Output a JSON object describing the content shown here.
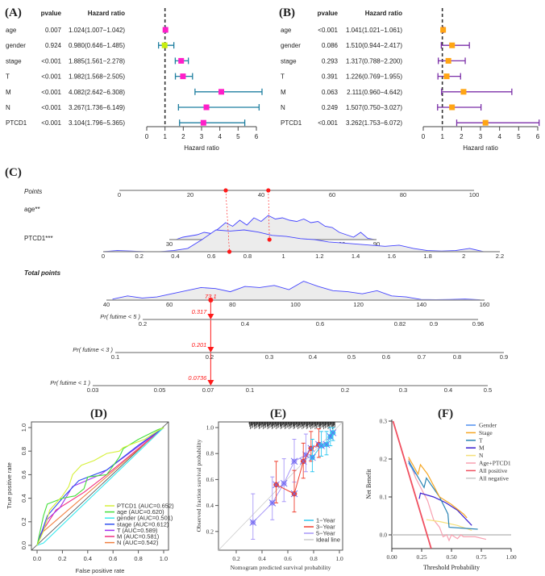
{
  "panels": {
    "A": "(A)",
    "B": "(B)",
    "C": "(C)",
    "D": "(D)",
    "E": "(E)",
    "F": "(F)"
  },
  "chart_data": [
    {
      "id": "A",
      "type": "forest",
      "title": "(A)",
      "col_headers": [
        "pvalue",
        "Hazard ratio"
      ],
      "xlabel": "Hazard ratio",
      "xlim": [
        0,
        6
      ],
      "xticks": [
        0,
        1,
        2,
        3,
        4,
        5,
        6
      ],
      "ref_line": 1,
      "point_color": "#ff1ec8",
      "alt_point_color": "#c8ee10",
      "ci_color": "#1f7fa0",
      "rows": [
        {
          "name": "age",
          "pvalue": "0.007",
          "hr_text": "1.024(1.007−1.042)",
          "hr": 1.024,
          "lo": 1.007,
          "hi": 1.042
        },
        {
          "name": "gender",
          "pvalue": "0.924",
          "hr_text": "0.980(0.646−1.485)",
          "hr": 0.98,
          "lo": 0.646,
          "hi": 1.485,
          "alt": true
        },
        {
          "name": "stage",
          "pvalue": "<0.001",
          "hr_text": "1.885(1.561−2.278)",
          "hr": 1.885,
          "lo": 1.561,
          "hi": 2.278
        },
        {
          "name": "T",
          "pvalue": "<0.001",
          "hr_text": "1.982(1.568−2.505)",
          "hr": 1.982,
          "lo": 1.568,
          "hi": 2.505
        },
        {
          "name": "M",
          "pvalue": "<0.001",
          "hr_text": "4.082(2.642−6.308)",
          "hr": 4.082,
          "lo": 2.642,
          "hi": 6.308
        },
        {
          "name": "N",
          "pvalue": "<0.001",
          "hr_text": "3.267(1.736−6.149)",
          "hr": 3.267,
          "lo": 1.736,
          "hi": 6.149
        },
        {
          "name": "PTCD1",
          "pvalue": "<0.001",
          "hr_text": "3.104(1.796−5.365)",
          "hr": 3.104,
          "lo": 1.796,
          "hi": 5.365
        }
      ]
    },
    {
      "id": "B",
      "type": "forest",
      "title": "(B)",
      "col_headers": [
        "pvalue",
        "Hazard ratio"
      ],
      "xlabel": "Hazard ratio",
      "xlim": [
        0,
        6
      ],
      "xticks": [
        0,
        1,
        2,
        3,
        4,
        5,
        6
      ],
      "ref_line": 1,
      "point_color": "#ffa514",
      "ci_color": "#7b2fa8",
      "rows": [
        {
          "name": "age",
          "pvalue": "<0.001",
          "hr_text": "1.041(1.021−1.061)",
          "hr": 1.041,
          "lo": 1.021,
          "hi": 1.061
        },
        {
          "name": "gender",
          "pvalue": "0.086",
          "hr_text": "1.510(0.944−2.417)",
          "hr": 1.51,
          "lo": 0.944,
          "hi": 2.417
        },
        {
          "name": "stage",
          "pvalue": "0.293",
          "hr_text": "1.317(0.788−2.200)",
          "hr": 1.317,
          "lo": 0.788,
          "hi": 2.2
        },
        {
          "name": "T",
          "pvalue": "0.391",
          "hr_text": "1.226(0.769−1.955)",
          "hr": 1.226,
          "lo": 0.769,
          "hi": 1.955
        },
        {
          "name": "M",
          "pvalue": "0.063",
          "hr_text": "2.111(0.960−4.642)",
          "hr": 2.111,
          "lo": 0.96,
          "hi": 4.642
        },
        {
          "name": "N",
          "pvalue": "0.249",
          "hr_text": "1.507(0.750−3.027)",
          "hr": 1.507,
          "lo": 0.75,
          "hi": 3.027
        },
        {
          "name": "PTCD1",
          "pvalue": "<0.001",
          "hr_text": "3.262(1.753−6.072)",
          "hr": 3.262,
          "lo": 1.753,
          "hi": 6.072
        }
      ]
    },
    {
      "id": "C",
      "type": "nomogram",
      "title": "(C)",
      "marker_color": "#ff1a1a",
      "density_color": "#4444ff",
      "points_scale": {
        "label": "Points",
        "ticks": [
          "0",
          "20",
          "40",
          "60",
          "80",
          "100"
        ],
        "range": [
          0,
          100
        ]
      },
      "variables": [
        {
          "label": "age**",
          "ticks": [
            "30",
            "40",
            "50",
            "60",
            "70",
            "80",
            "90"
          ],
          "tick_values": [
            30,
            40,
            50,
            60,
            70,
            80,
            90
          ],
          "selected_value": 59,
          "selected_points": 42,
          "density": [
            0,
            0.1,
            0.15,
            0.2,
            0.3,
            0.25,
            0.45,
            0.7,
            0.55,
            0.8,
            0.6,
            0.9,
            0.75,
            1,
            0.85,
            0.9,
            0.8,
            0.75,
            0.85,
            0.7,
            0.75,
            0.55,
            0.5,
            0.3,
            0.2,
            0.1,
            0.3,
            0.05,
            0
          ]
        },
        {
          "label": "PTCD1***",
          "ticks": [
            "0",
            "0.2",
            "0.4",
            "0.6",
            "0.8",
            "1",
            "1.2",
            "1.4",
            "1.6",
            "1.8",
            "2",
            "2.2"
          ],
          "tick_values": [
            0,
            0.2,
            0.4,
            0.6,
            0.8,
            1,
            1.2,
            1.4,
            1.6,
            1.8,
            2,
            2.2
          ],
          "selected_value": 0.7,
          "selected_points": 30,
          "density": [
            0,
            0.05,
            0.03,
            0,
            0,
            0.05,
            0.15,
            0.55,
            1,
            0.95,
            1,
            0.9,
            0.75,
            0.7,
            0.6,
            0.55,
            0.45,
            0.4,
            0.35,
            0.3,
            0.25,
            0.3,
            0.15,
            0.05,
            0.03,
            0.05,
            0.15,
            0
          ]
        }
      ],
      "total_points": {
        "label": "Total points",
        "ticks": [
          "40",
          "60",
          "80",
          "100",
          "120",
          "140",
          "160"
        ],
        "tick_values": [
          40,
          60,
          80,
          100,
          120,
          140,
          160
        ],
        "selected": 73.1,
        "selected_label": "73.1",
        "density": [
          0.05,
          0.2,
          0.1,
          0.15,
          0.3,
          0.45,
          0.6,
          0.55,
          0.4,
          0.65,
          0.6,
          0.7,
          0.5,
          0.9,
          0.65,
          0.45,
          0.4,
          0.3,
          0.45,
          0.2,
          0.15,
          0.03,
          0.02,
          0.03,
          0.05,
          0.02
        ]
      },
      "probabilities": [
        {
          "label": "Pr( futime < 5 )",
          "ticks": [
            "0.2",
            "0.4",
            "0.6",
            "0.82",
            "0.9",
            "0.96"
          ],
          "selected_label": "0.317"
        },
        {
          "label": "Pr( futime < 3 )",
          "ticks": [
            "0.1",
            "0.2",
            "0.3",
            "0.4",
            "0.5",
            "0.6",
            "0.7",
            "0.8",
            "0.9"
          ],
          "selected_label": "0.201"
        },
        {
          "label": "Pr( futime < 1 )",
          "ticks": [
            "0.03",
            "0.05",
            "0.07",
            "0.1",
            "0.2",
            "0.3",
            "0.4",
            "0.5"
          ],
          "selected_label": "0.0736"
        }
      ]
    },
    {
      "id": "D",
      "type": "line",
      "title": "(D)",
      "xlabel": "False positive rate",
      "ylabel": "True positive rate",
      "xlim": [
        0,
        1
      ],
      "ylim": [
        0,
        1
      ],
      "ticks": [
        "0.0",
        "0.2",
        "0.4",
        "0.6",
        "0.8",
        "1.0"
      ],
      "legend_position": "bottom-right",
      "series": [
        {
          "name": "PTCD1 (AUC=0.652)",
          "color": "#d6f03a",
          "points": [
            [
              0,
              0
            ],
            [
              0.05,
              0.12
            ],
            [
              0.1,
              0.3
            ],
            [
              0.2,
              0.42
            ],
            [
              0.25,
              0.5
            ],
            [
              0.28,
              0.6
            ],
            [
              0.35,
              0.68
            ],
            [
              0.45,
              0.72
            ],
            [
              0.55,
              0.78
            ],
            [
              0.65,
              0.8
            ],
            [
              0.68,
              0.83
            ],
            [
              0.75,
              0.86
            ],
            [
              0.85,
              0.9
            ],
            [
              0.95,
              0.97
            ],
            [
              1,
              1
            ]
          ]
        },
        {
          "name": "age (AUC=0.620)",
          "color": "#44e03c",
          "points": [
            [
              0,
              0
            ],
            [
              0.05,
              0.25
            ],
            [
              0.08,
              0.35
            ],
            [
              0.2,
              0.4
            ],
            [
              0.3,
              0.42
            ],
            [
              0.37,
              0.48
            ],
            [
              0.4,
              0.58
            ],
            [
              0.55,
              0.6
            ],
            [
              0.65,
              0.75
            ],
            [
              0.68,
              0.82
            ],
            [
              0.8,
              0.9
            ],
            [
              0.95,
              0.98
            ],
            [
              1,
              1
            ]
          ]
        },
        {
          "name": "gender (AUC=0.501)",
          "color": "#3ae8ee",
          "points": [
            [
              0,
              0
            ],
            [
              0.05,
              0.02
            ],
            [
              1,
              1
            ]
          ]
        },
        {
          "name": "stage (AUC=0.612)",
          "color": "#3050f0",
          "points": [
            [
              0,
              0
            ],
            [
              0.08,
              0.25
            ],
            [
              0.2,
              0.4
            ],
            [
              0.33,
              0.55
            ],
            [
              0.55,
              0.64
            ],
            [
              0.8,
              0.85
            ],
            [
              1,
              1
            ]
          ]
        },
        {
          "name": "T (AUC=0.589)",
          "color": "#a030f0",
          "points": [
            [
              0,
              0
            ],
            [
              0.08,
              0.22
            ],
            [
              0.18,
              0.32
            ],
            [
              0.28,
              0.5
            ],
            [
              0.5,
              0.6
            ],
            [
              1,
              1
            ]
          ]
        },
        {
          "name": "M (AUC=0.581)",
          "color": "#f03080",
          "points": [
            [
              0,
              0
            ],
            [
              0.03,
              0.1
            ],
            [
              0.15,
              0.3
            ],
            [
              0.37,
              0.45
            ],
            [
              0.55,
              0.6
            ],
            [
              1,
              1
            ]
          ]
        },
        {
          "name": "N (AUC=0.542)",
          "color": "#f08040",
          "points": [
            [
              0,
              0
            ],
            [
              0.03,
              0.1
            ],
            [
              1,
              1
            ]
          ]
        }
      ]
    },
    {
      "id": "E",
      "type": "scatter",
      "title": "(E)",
      "xlabel": "Nomogram predicted survival probability",
      "ylabel": "Observed fraction survival probability",
      "xticks": [
        "0.2",
        "0.4",
        "0.6",
        "0.8",
        "1.0"
      ],
      "yticks": [
        "0.2",
        "0.4",
        "0.6",
        "0.8",
        "1.0"
      ],
      "legend_position": "bottom-right",
      "ideal_line": {
        "name": "Ideal line",
        "color": "#cccccc"
      },
      "series": [
        {
          "name": "1−Year",
          "color": "#30c8f0",
          "points": [
            [
              0.79,
              0.77,
              0.66,
              0.91
            ],
            [
              0.86,
              0.86,
              0.78,
              0.97
            ],
            [
              0.9,
              0.87,
              0.79,
              0.97
            ],
            [
              0.93,
              0.93,
              0.86,
              1.0
            ],
            [
              0.95,
              0.96,
              0.9,
              1.0
            ]
          ]
        },
        {
          "name": "3−Year",
          "color": "#f04030",
          "points": [
            [
              0.51,
              0.56,
              0.42,
              0.74
            ],
            [
              0.65,
              0.49,
              0.35,
              0.67
            ],
            [
              0.72,
              0.74,
              0.61,
              0.88
            ],
            [
              0.78,
              0.84,
              0.74,
              0.97
            ],
            [
              0.84,
              0.87,
              0.77,
              0.99
            ]
          ]
        },
        {
          "name": "5−Year",
          "color": "#a898f8",
          "points": [
            [
              0.33,
              0.27,
              0.14,
              0.49
            ],
            [
              0.48,
              0.42,
              0.29,
              0.62
            ],
            [
              0.57,
              0.57,
              0.43,
              0.76
            ],
            [
              0.65,
              0.74,
              0.58,
              0.91
            ],
            [
              0.74,
              0.79,
              0.66,
              0.95
            ]
          ]
        }
      ]
    },
    {
      "id": "F",
      "type": "line",
      "title": "(F)",
      "xlabel": "Threshold Probability",
      "ylabel": "Net Benefit",
      "xticks": [
        "0.00",
        "0.25",
        "0.50",
        "0.75",
        "1.00"
      ],
      "yticks": [
        "0.0",
        "0.1",
        "0.2",
        "0.3"
      ],
      "xlim": [
        0,
        1
      ],
      "ylim": [
        -0.036,
        0.3
      ],
      "legend_position": "top-right",
      "series": [
        {
          "name": "Gender",
          "color": "#5090f0",
          "points": [
            [
              0.14,
              0.19
            ],
            [
              0.2,
              0.16
            ]
          ]
        },
        {
          "name": "Stage",
          "color": "#f5a623",
          "points": [
            [
              0.14,
              0.205
            ],
            [
              0.22,
              0.16
            ],
            [
              0.24,
              0.185
            ],
            [
              0.3,
              0.16
            ],
            [
              0.4,
              0.1
            ],
            [
              0.5,
              0.08
            ],
            [
              0.6,
              0.055
            ],
            [
              0.63,
              0.045
            ]
          ]
        },
        {
          "name": "T",
          "color": "#2a84b4",
          "points": [
            [
              0.14,
              0.195
            ],
            [
              0.27,
              0.125
            ],
            [
              0.29,
              0.15
            ],
            [
              0.4,
              0.1
            ],
            [
              0.47,
              0.055
            ],
            [
              0.48,
              0.02
            ],
            [
              0.72,
              0.015
            ]
          ]
        },
        {
          "name": "M",
          "color": "#3a20d0",
          "points": [
            [
              0.23,
              0.095
            ],
            [
              0.24,
              0.11
            ],
            [
              0.35,
              0.1
            ],
            [
              0.45,
              0.085
            ],
            [
              0.55,
              0.065
            ],
            [
              0.67,
              0.025
            ]
          ]
        },
        {
          "name": "N",
          "color": "#f5e07a",
          "points": [
            [
              0.29,
              0.04
            ],
            [
              0.4,
              0.035
            ],
            [
              0.55,
              0.025
            ],
            [
              0.67,
              0.012
            ]
          ]
        },
        {
          "name": "Age+PTCD1",
          "color": "#f8a0b0",
          "points": [
            [
              0.14,
              0.2
            ],
            [
              0.2,
              0.15
            ],
            [
              0.25,
              0.12
            ],
            [
              0.3,
              0.09
            ],
            [
              0.35,
              0.04
            ],
            [
              0.4,
              0.02
            ],
            [
              0.43,
              -0.005
            ],
            [
              0.46,
              0.0
            ],
            [
              0.48,
              -0.015
            ],
            [
              0.5,
              0.0
            ],
            [
              0.55,
              -0.01
            ],
            [
              0.58,
              0.0
            ],
            [
              0.6,
              -0.005
            ],
            [
              0.7,
              -0.005
            ],
            [
              0.79,
              -0.012
            ]
          ]
        },
        {
          "name": "All positive",
          "color": "#f05060",
          "points": [
            [
              0.01,
              0.3
            ],
            [
              0.33,
              -0.036
            ]
          ]
        },
        {
          "name": "All negative",
          "color": "#c8c8c8",
          "points": [
            [
              0,
              0
            ],
            [
              1,
              0
            ]
          ]
        }
      ]
    }
  ]
}
